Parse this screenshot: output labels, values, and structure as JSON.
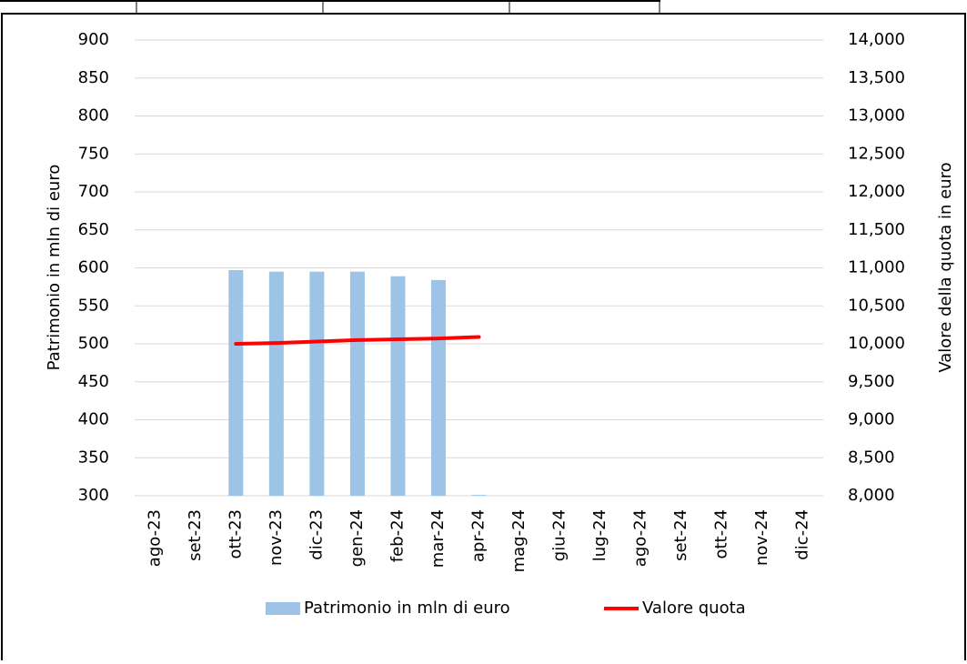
{
  "chart_data": {
    "type": "bar-line",
    "categories": [
      "ago-23",
      "set-23",
      "ott-23",
      "nov-23",
      "dic-23",
      "gen-24",
      "feb-24",
      "mar-24",
      "apr-24",
      "mag-24",
      "giu-24",
      "lug-24",
      "ago-24",
      "set-24",
      "ott-24",
      "nov-24",
      "dic-24"
    ],
    "series": [
      {
        "name": "Patrimonio in mln di euro",
        "type": "bar",
        "color": "#9dc3e6",
        "values": [
          null,
          null,
          597,
          595,
          595,
          595,
          589,
          584,
          301,
          null,
          null,
          null,
          null,
          null,
          null,
          null,
          null
        ]
      },
      {
        "name": "Valore quota",
        "type": "line",
        "axis": "y2",
        "color": "#ff0000",
        "values": [
          null,
          null,
          10000,
          10010,
          10030,
          10050,
          10060,
          10070,
          10090,
          null,
          null,
          null,
          null,
          null,
          null,
          null,
          null
        ]
      }
    ],
    "ylabel": "Patrimonio in mln di euro",
    "y2label": "Valore della quota in euro",
    "ylim": [
      300,
      900
    ],
    "yticks": [
      300,
      350,
      400,
      450,
      500,
      550,
      600,
      650,
      700,
      750,
      800,
      850,
      900
    ],
    "y2lim": [
      8000,
      14000
    ],
    "y2ticks": [
      {
        "value": 8000,
        "label": "8,000"
      },
      {
        "value": 8500,
        "label": "8,500"
      },
      {
        "value": 9000,
        "label": "9,000"
      },
      {
        "value": 9500,
        "label": "9,500"
      },
      {
        "value": 10000,
        "label": "10,000"
      },
      {
        "value": 10500,
        "label": "10,500"
      },
      {
        "value": 11000,
        "label": "11,000"
      },
      {
        "value": 11500,
        "label": "11,500"
      },
      {
        "value": 12000,
        "label": "12,000"
      },
      {
        "value": 12500,
        "label": "12,500"
      },
      {
        "value": 13000,
        "label": "13,000"
      },
      {
        "value": 13500,
        "label": "13,500"
      },
      {
        "value": 14000,
        "label": "14,000"
      }
    ],
    "grid": true,
    "legend": "bottom"
  }
}
